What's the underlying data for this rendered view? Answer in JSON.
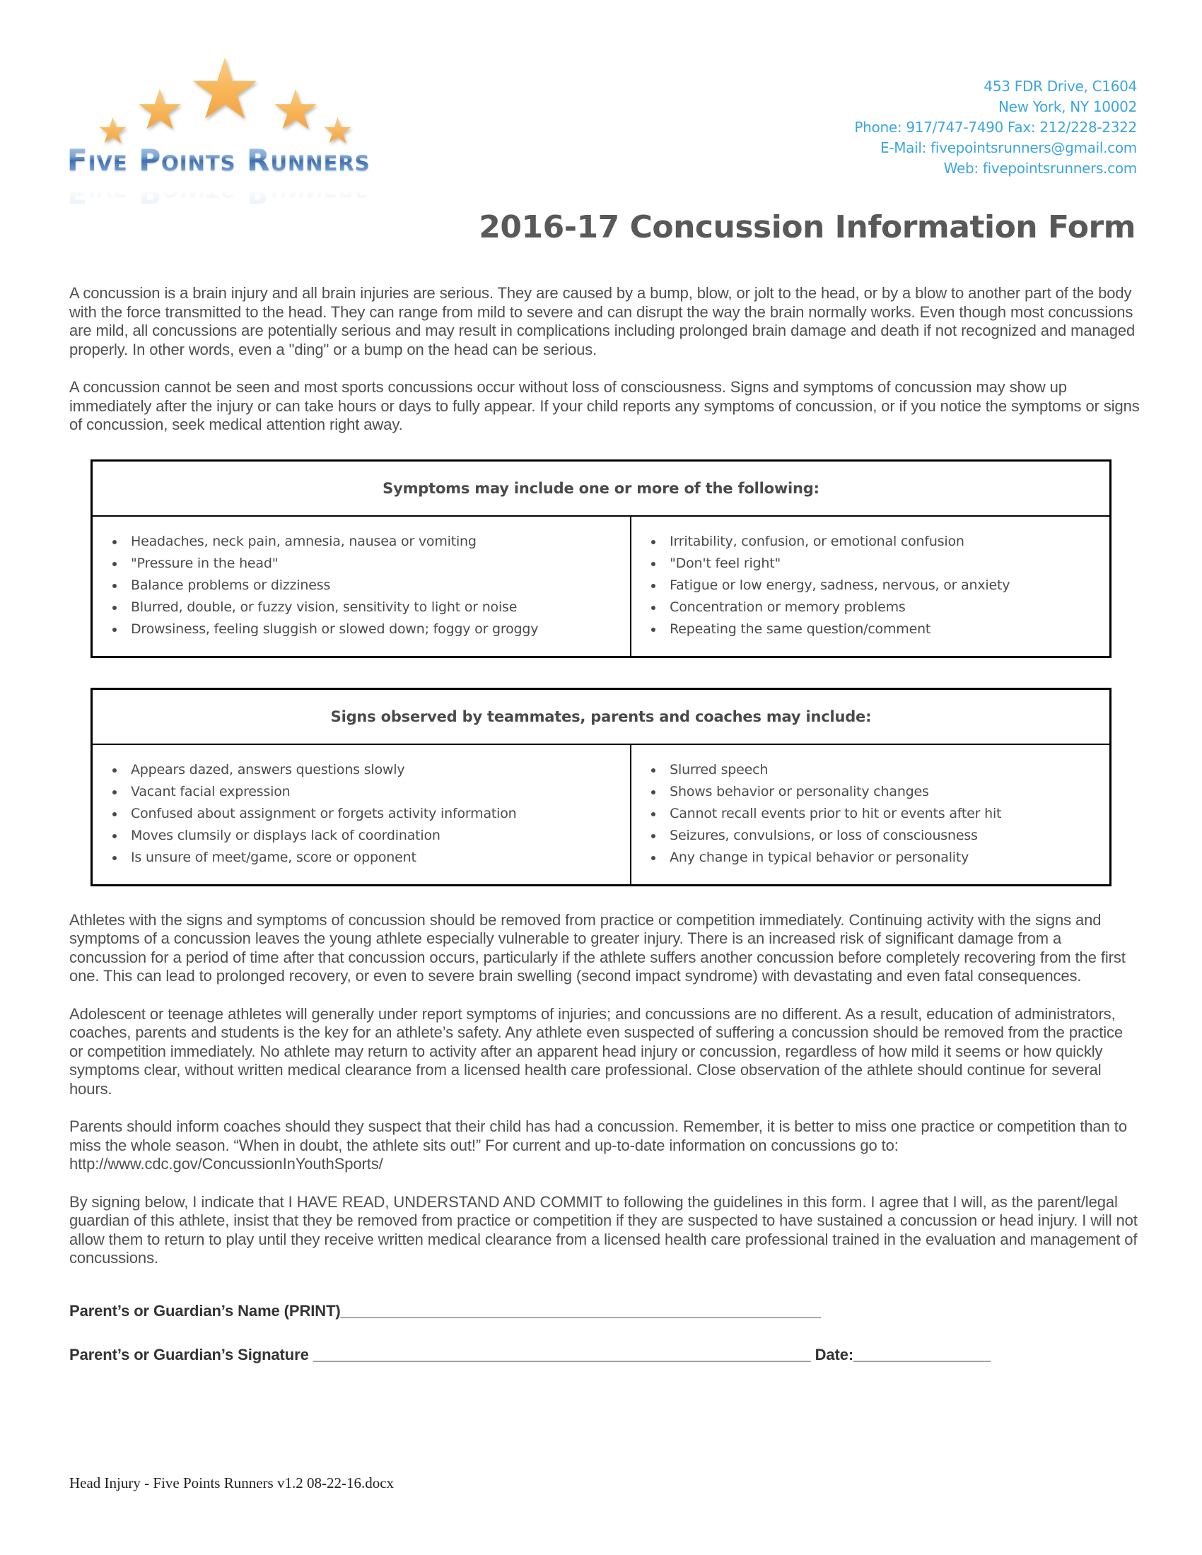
{
  "logo": {
    "name": "Five Points Runners",
    "star_icon": "star",
    "star_glyph": "★"
  },
  "contact": {
    "address_line1": "453 FDR Drive, C1604",
    "address_line2": "New York, NY 10002",
    "phone_fax": "Phone: 917/747-7490 Fax: 212/228-2322",
    "email": "E-Mail: fivepointsrunners@gmail.com",
    "web": "Web: fivepointsrunners.com"
  },
  "title": "2016-17 Concussion Information Form",
  "paragraphs": {
    "p1": "A concussion is a brain injury and all brain injuries are serious. They are caused by a bump, blow, or jolt to the head, or by a blow to another part of the body with the force transmitted to the head. They can range from mild to severe and can disrupt the way the brain normally works. Even though most concussions are mild, all concussions are potentially serious and may result in complications including prolonged brain damage and death if not recognized and managed properly. In other words, even a \"ding\" or a bump on the head can be serious.",
    "p2": "A concussion cannot be seen and most sports concussions occur without loss of consciousness. Signs and symptoms of concussion may show up immediately after the injury or can take hours or days to fully appear. If your child reports any symptoms of concussion, or if you notice the symptoms or signs of concussion, seek medical attention right away.",
    "p3": "Athletes with the signs and symptoms of concussion should be removed from practice or competition immediately. Continuing activity with the signs and symptoms of a concussion leaves the young athlete especially vulnerable to greater injury. There is an increased risk of significant damage from a concussion for a period of time after that concussion occurs, particularly if the athlete suffers another concussion before completely recovering from the first one. This can lead to prolonged recovery, or even to severe brain swelling (second impact syndrome) with devastating and even fatal consequences.",
    "p4": "Adolescent or teenage athletes will generally under report symptoms of injuries; and concussions are no different. As a result, education of administrators, coaches, parents and students is the key for an athlete’s safety. Any athlete even suspected of suffering a concussion should be removed from the practice or competition immediately. No athlete may return to activity after an apparent head injury or concussion, regardless of how mild it seems or how quickly symptoms clear, without written medical clearance from a licensed health care professional. Close observation of the athlete should continue for several hours.",
    "p5": "Parents should inform coaches should they suspect that their child has had a concussion. Remember, it is better to miss one practice or competition than to miss the whole season. “When in doubt, the athlete sits out!” For current and up-to-date information on concussions go to: http://www.cdc.gov/ConcussionInYouthSports/",
    "p6": "By signing below, I indicate that I HAVE READ, UNDERSTAND AND COMMIT to following the guidelines in this form. I agree that I will, as the parent/legal guardian of this athlete, insist that they be removed from practice or competition if they are suspected to have sustained a concussion or head injury. I will not allow them to return to play until they receive written medical clearance from a licensed health care professional trained in the evaluation and management of concussions."
  },
  "symptoms_table": {
    "header": "Symptoms may include one or more of the following:",
    "left_items": [
      "Headaches, neck pain, amnesia, nausea or vomiting",
      "\"Pressure in the head\"",
      "Balance problems or dizziness",
      "Blurred, double, or fuzzy vision, sensitivity to light or noise",
      "Drowsiness, feeling sluggish or slowed down; foggy or groggy"
    ],
    "right_items": [
      "Irritability, confusion, or emotional confusion",
      "\"Don't feel right\"",
      "Fatigue or low energy, sadness, nervous, or anxiety",
      "Concentration or memory problems",
      "Repeating the same question/comment"
    ]
  },
  "signs_table": {
    "header": "Signs observed by teammates, parents and coaches may include:",
    "left_items": [
      "Appears dazed, answers questions slowly",
      "Vacant facial expression",
      "Confused about assignment or forgets activity information",
      "Moves clumsily or displays lack of coordination",
      "Is unsure of meet/game, score or opponent"
    ],
    "right_items": [
      "Slurred speech",
      "Shows behavior or personality changes",
      "Cannot recall events prior to hit or events after hit",
      "Seizures, convulsions, or loss of consciousness",
      "Any change in typical behavior or personality"
    ]
  },
  "signature": {
    "name_label": "Parent’s or Guardian’s Name (PRINT)",
    "name_blank": "________________________________________________________",
    "signature_label": "Parent’s or Guardian’s Signature ",
    "signature_blank": "__________________________________________________________",
    "date_label": " Date:",
    "date_blank": "________________"
  },
  "footer": "Head Injury - Five Points Runners v1.2 08-22-16.docx"
}
